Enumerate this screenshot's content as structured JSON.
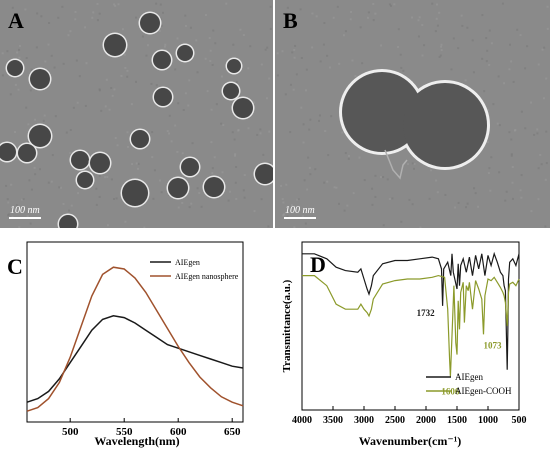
{
  "panels": {
    "A": {
      "letter": "A",
      "scale_bar": "100 nm"
    },
    "B": {
      "letter": "B",
      "scale_bar": "100 nm"
    },
    "C": {
      "letter": "C"
    },
    "D": {
      "letter": "D"
    }
  },
  "colors": {
    "black_series": "#1a1a1a",
    "brown_series": "#a0522d",
    "olive_series": "#8b9a2a",
    "tem_background": "#8a8a8a",
    "sphere_fill": "#474747"
  },
  "chart_data": [
    {
      "panel": "C",
      "type": "line",
      "xlabel": "Wavelength(nm)",
      "ylabel": "",
      "xlim": [
        460,
        660
      ],
      "ylim": [
        0,
        1
      ],
      "xticks": [
        500,
        550,
        600,
        650
      ],
      "xtick_labels": [
        "500",
        "550",
        "600",
        "650"
      ],
      "legend_position": "top-right",
      "series": [
        {
          "name": "AIEgen",
          "color": "#1a1a1a",
          "x": [
            460,
            470,
            480,
            490,
            500,
            510,
            520,
            530,
            540,
            550,
            560,
            570,
            580,
            590,
            600,
            610,
            620,
            630,
            640,
            650,
            660
          ],
          "y": [
            0.11,
            0.13,
            0.17,
            0.24,
            0.33,
            0.42,
            0.51,
            0.57,
            0.59,
            0.58,
            0.55,
            0.51,
            0.47,
            0.43,
            0.41,
            0.39,
            0.37,
            0.35,
            0.33,
            0.31,
            0.3
          ]
        },
        {
          "name": "AIEgen nanosphere",
          "color": "#a0522d",
          "x": [
            460,
            470,
            480,
            490,
            500,
            510,
            520,
            530,
            540,
            550,
            560,
            570,
            580,
            590,
            600,
            610,
            620,
            630,
            640,
            650,
            660
          ],
          "y": [
            0.06,
            0.08,
            0.13,
            0.22,
            0.36,
            0.53,
            0.7,
            0.82,
            0.86,
            0.85,
            0.8,
            0.72,
            0.62,
            0.52,
            0.42,
            0.33,
            0.25,
            0.19,
            0.14,
            0.11,
            0.09
          ]
        }
      ]
    },
    {
      "panel": "D",
      "type": "line",
      "xlabel": "Wavenumber(cm⁻¹)",
      "ylabel": "Transmittance(a.u.)",
      "xlim": [
        4000,
        500
      ],
      "ylim": [
        0,
        1
      ],
      "xticks": [
        4000,
        3500,
        3000,
        2500,
        2000,
        1500,
        1000,
        500
      ],
      "xtick_labels": [
        "4000",
        "3500",
        "3000",
        "2500",
        "2000",
        "1500",
        "1000",
        "500"
      ],
      "legend_position": "bottom-right",
      "annotations": [
        {
          "text": "1732",
          "x": 1732,
          "y": 0.62,
          "color": "#1a1a1a"
        },
        {
          "text": "1606",
          "x": 1606,
          "y": 0.2,
          "color": "#8b9a2a"
        },
        {
          "text": "1073",
          "x": 1073,
          "y": 0.45,
          "color": "#8b9a2a"
        }
      ],
      "series": [
        {
          "name": "AIEgen",
          "color": "#1a1a1a",
          "x": [
            4000,
            3800,
            3600,
            3450,
            3300,
            3100,
            3050,
            3000,
            2950,
            2920,
            2880,
            2850,
            2700,
            2500,
            2300,
            2100,
            1900,
            1800,
            1750,
            1732,
            1715,
            1650,
            1600,
            1580,
            1560,
            1500,
            1480,
            1460,
            1440,
            1400,
            1350,
            1300,
            1250,
            1200,
            1150,
            1100,
            1050,
            1000,
            950,
            900,
            850,
            800,
            760,
            740,
            720,
            700,
            690,
            680,
            670,
            650,
            600,
            550,
            500
          ],
          "y": [
            0.93,
            0.93,
            0.9,
            0.85,
            0.83,
            0.82,
            0.84,
            0.78,
            0.72,
            0.69,
            0.74,
            0.8,
            0.87,
            0.89,
            0.89,
            0.9,
            0.91,
            0.9,
            0.84,
            0.62,
            0.84,
            0.88,
            0.8,
            0.93,
            0.82,
            0.72,
            0.87,
            0.74,
            0.86,
            0.9,
            0.82,
            0.91,
            0.8,
            0.92,
            0.84,
            0.93,
            0.8,
            0.92,
            0.86,
            0.93,
            0.88,
            0.82,
            0.8,
            0.74,
            0.71,
            0.4,
            0.24,
            0.45,
            0.78,
            0.88,
            0.9,
            0.86,
            0.93
          ]
        },
        {
          "name": "AIEgen-COOH",
          "color": "#8b9a2a",
          "x": [
            4000,
            3800,
            3600,
            3450,
            3300,
            3100,
            3050,
            3000,
            2950,
            2920,
            2880,
            2850,
            2700,
            2500,
            2300,
            2100,
            1900,
            1800,
            1700,
            1650,
            1620,
            1606,
            1590,
            1550,
            1520,
            1500,
            1480,
            1460,
            1440,
            1400,
            1380,
            1350,
            1320,
            1300,
            1250,
            1200,
            1150,
            1100,
            1073,
            1050,
            1000,
            950,
            900,
            850,
            800,
            760,
            740,
            720,
            700,
            690,
            680,
            670,
            650,
            600,
            550,
            500
          ],
          "y": [
            0.8,
            0.8,
            0.74,
            0.63,
            0.6,
            0.6,
            0.63,
            0.6,
            0.58,
            0.56,
            0.6,
            0.66,
            0.75,
            0.77,
            0.78,
            0.78,
            0.79,
            0.8,
            0.79,
            0.6,
            0.3,
            0.2,
            0.35,
            0.74,
            0.4,
            0.33,
            0.65,
            0.48,
            0.7,
            0.76,
            0.52,
            0.74,
            0.71,
            0.76,
            0.6,
            0.77,
            0.72,
            0.66,
            0.45,
            0.68,
            0.78,
            0.77,
            0.79,
            0.76,
            0.73,
            0.7,
            0.68,
            0.64,
            0.55,
            0.5,
            0.58,
            0.7,
            0.75,
            0.76,
            0.74,
            0.78
          ]
        }
      ]
    }
  ]
}
